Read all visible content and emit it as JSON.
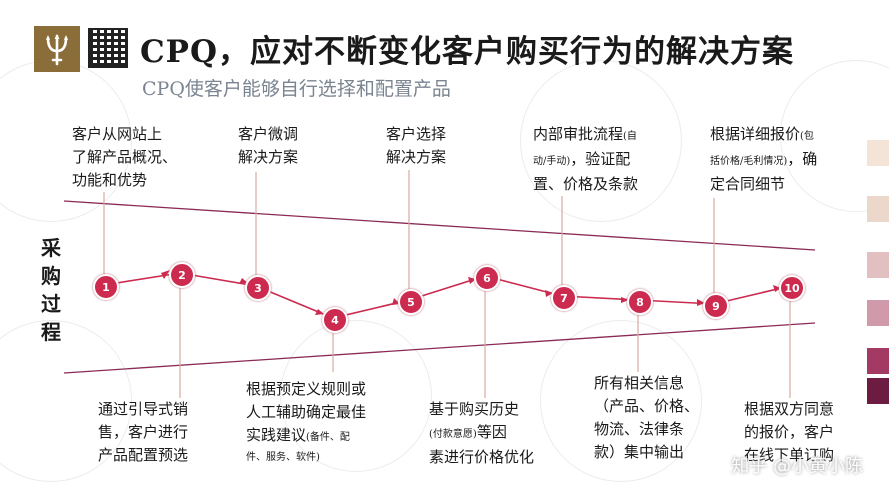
{
  "header": {
    "title": "CPQ，应对不断变化客户购买行为的解决方案",
    "subtitle": "CPQ使客户能够自行选择和配置产品"
  },
  "side_label": [
    "采",
    "购",
    "过",
    "程"
  ],
  "steps": [
    {
      "num": "1"
    },
    {
      "num": "2"
    },
    {
      "num": "3"
    },
    {
      "num": "4"
    },
    {
      "num": "5"
    },
    {
      "num": "6"
    },
    {
      "num": "7"
    },
    {
      "num": "8"
    },
    {
      "num": "9"
    },
    {
      "num": "10"
    }
  ],
  "notes_top": [
    {
      "lines": [
        "客户从网站上",
        "了解产品概况、",
        "功能和优势"
      ]
    },
    {
      "lines": [
        "客户微调",
        "解决方案"
      ]
    },
    {
      "lines": [
        "客户选择",
        "解决方案"
      ]
    },
    {
      "l1": "内部审批流程",
      "l1s": "(自",
      "l2s": "动/手动)",
      "l2": "，验证配",
      "l3": "置、价格及条款"
    },
    {
      "l1": "根据详细报价",
      "l1s": "(包",
      "l2s": "括价格/毛利情况)",
      "l2": "，确",
      "l3": "定合同细节"
    }
  ],
  "notes_bottom": [
    {
      "lines": [
        "通过引导式销",
        "售，客户进行",
        "产品配置预选"
      ]
    },
    {
      "l1": "根据预定义规则或",
      "l2": "人工辅助确定最佳",
      "l3": "实践建议",
      "l3s": "(备件、配",
      "l4s": "件、服务、软件)"
    },
    {
      "l1": "基于购买历史",
      "l2s": "(付款意愿)",
      "l2": "等因",
      "l3": "素进行价格优化"
    },
    {
      "lines": [
        "所有相关信息",
        "（产品、价格、",
        "物流、法律条",
        "款）集中输出"
      ]
    },
    {
      "lines": [
        "根据双方同意",
        "的报价，客户",
        "在线下单订购"
      ]
    }
  ],
  "watermark": "知乎 @小黄小陈",
  "colors": {
    "accent": "#cc2a4f",
    "logo_bg": "#8b6d3a",
    "funnel_line": "#8a2a55",
    "subtitle": "#7b8591",
    "strips": [
      "#f3e4d7",
      "#e8cfc2",
      "#d8aab4",
      "#c87f96",
      "#9c2e5a",
      "#6c1c40"
    ]
  }
}
